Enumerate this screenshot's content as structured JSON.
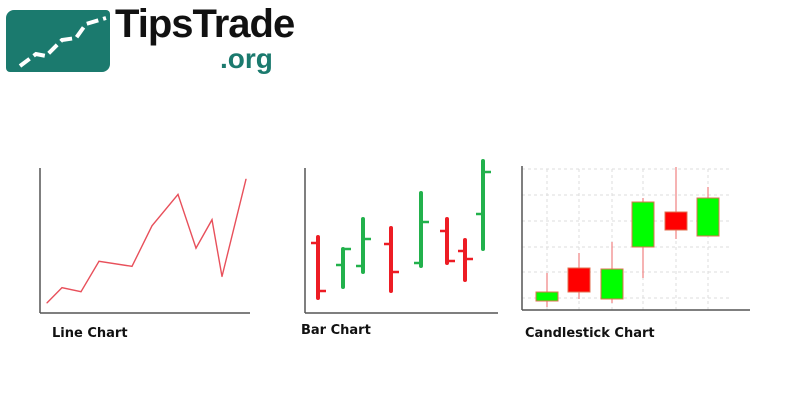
{
  "logo": {
    "main": "TipsTrade",
    "suffix": ".org"
  },
  "colors": {
    "up": "#22b14c",
    "down": "#ed1c24",
    "candle_up": "#00ff00",
    "candle_down": "#ff0000",
    "line": "#e8505b",
    "wick": "#f08080",
    "axis": "#555555",
    "grid": "#dddddd",
    "brand": "#1b7a6e"
  },
  "chart_data": [
    {
      "type": "line",
      "title": "Line Chart",
      "xlim": [
        0,
        21
      ],
      "ylim": [
        0,
        14.5
      ],
      "x": [
        0.7,
        2.2,
        4.1,
        5.9,
        9.2,
        11.2,
        13.8,
        15.6,
        17.2,
        18.2,
        20.6
      ],
      "y": [
        1.0,
        2.5,
        2.1,
        5.1,
        4.6,
        8.6,
        11.7,
        6.4,
        9.2,
        3.6,
        13.2
      ]
    },
    {
      "type": "ohlc",
      "title": "Bar Chart",
      "ylim": [
        0,
        15.5
      ],
      "bars": [
        {
          "o": 7.0,
          "h": 7.6,
          "l": 1.5,
          "c": 2.2
        },
        {
          "o": 4.8,
          "h": 6.4,
          "l": 2.6,
          "c": 6.4
        },
        {
          "o": 4.7,
          "h": 9.4,
          "l": 4.1,
          "c": 7.4
        },
        {
          "o": 6.9,
          "h": 8.5,
          "l": 2.2,
          "c": 4.1
        },
        {
          "o": 5.0,
          "h": 12.0,
          "l": 4.7,
          "c": 9.1
        },
        {
          "o": 8.2,
          "h": 9.4,
          "l": 5.0,
          "c": 5.2
        },
        {
          "o": 6.2,
          "h": 7.3,
          "l": 3.3,
          "c": 5.4
        },
        {
          "o": 9.9,
          "h": 15.2,
          "l": 6.4,
          "c": 14.1
        }
      ]
    },
    {
      "type": "candlestick",
      "title": "Candlestick Chart",
      "ylim": [
        0,
        14.3
      ],
      "grid": [
        1.2,
        3.8,
        6.3,
        8.9,
        11.5,
        14.1
      ],
      "candles": [
        {
          "o": 0.9,
          "h": 3.7,
          "l": 0.3,
          "c": 1.8
        },
        {
          "o": 4.2,
          "h": 5.7,
          "l": 1.1,
          "c": 1.8
        },
        {
          "o": 1.1,
          "h": 6.8,
          "l": 0.7,
          "c": 4.1
        },
        {
          "o": 6.3,
          "h": 11.2,
          "l": 3.2,
          "c": 10.8
        },
        {
          "o": 9.8,
          "h": 14.3,
          "l": 7.1,
          "c": 8.0
        },
        {
          "o": 7.4,
          "h": 12.3,
          "l": 7.4,
          "c": 11.2
        }
      ]
    }
  ]
}
